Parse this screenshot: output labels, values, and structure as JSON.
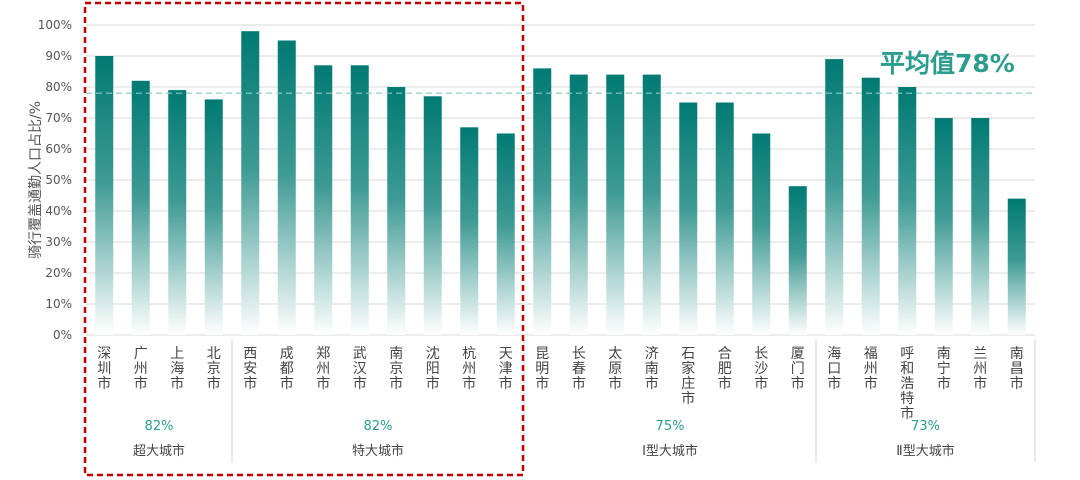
{
  "chart_data": {
    "type": "bar",
    "ylabel": "骑行覆盖通勤人口占比/%",
    "ylim": [
      0,
      100
    ],
    "yticks": [
      "0%",
      "10%",
      "20%",
      "30%",
      "40%",
      "50%",
      "60%",
      "70%",
      "80%",
      "90%",
      "100%"
    ],
    "average": {
      "value": 78,
      "label": "平均值78%"
    },
    "categories": [
      "深圳市",
      "广州市",
      "上海市",
      "北京市",
      "西安市",
      "成都市",
      "郑州市",
      "武汉市",
      "南京市",
      "沈阳市",
      "杭州市",
      "天津市",
      "昆明市",
      "长春市",
      "太原市",
      "济南市",
      "石家庄市",
      "合肥市",
      "长沙市",
      "厦门市",
      "海口市",
      "福州市",
      "呼和浩特市",
      "南宁市",
      "兰州市",
      "南昌市"
    ],
    "values": [
      90,
      82,
      79,
      76,
      98,
      95,
      87,
      87,
      80,
      77,
      67,
      65,
      86,
      84,
      84,
      84,
      75,
      75,
      65,
      48,
      89,
      83,
      80,
      70,
      70,
      44
    ],
    "groups": [
      {
        "name": "超大城市",
        "average": "82%",
        "count": 4
      },
      {
        "name": "特大城市",
        "average": "82%",
        "count": 8
      },
      {
        "name": "Ⅰ型大城市",
        "average": "75%",
        "count": 8
      },
      {
        "name": "Ⅱ型大城市",
        "average": "73%",
        "count": 6
      }
    ]
  },
  "colors": {
    "bar_top": "#007a73",
    "bar_bottom": "#ffffff",
    "avg_line": "#8cc9c4",
    "grid": "#d9d9d9",
    "highlight_box": "#c00000",
    "accent_text": "#2a9d8f"
  }
}
